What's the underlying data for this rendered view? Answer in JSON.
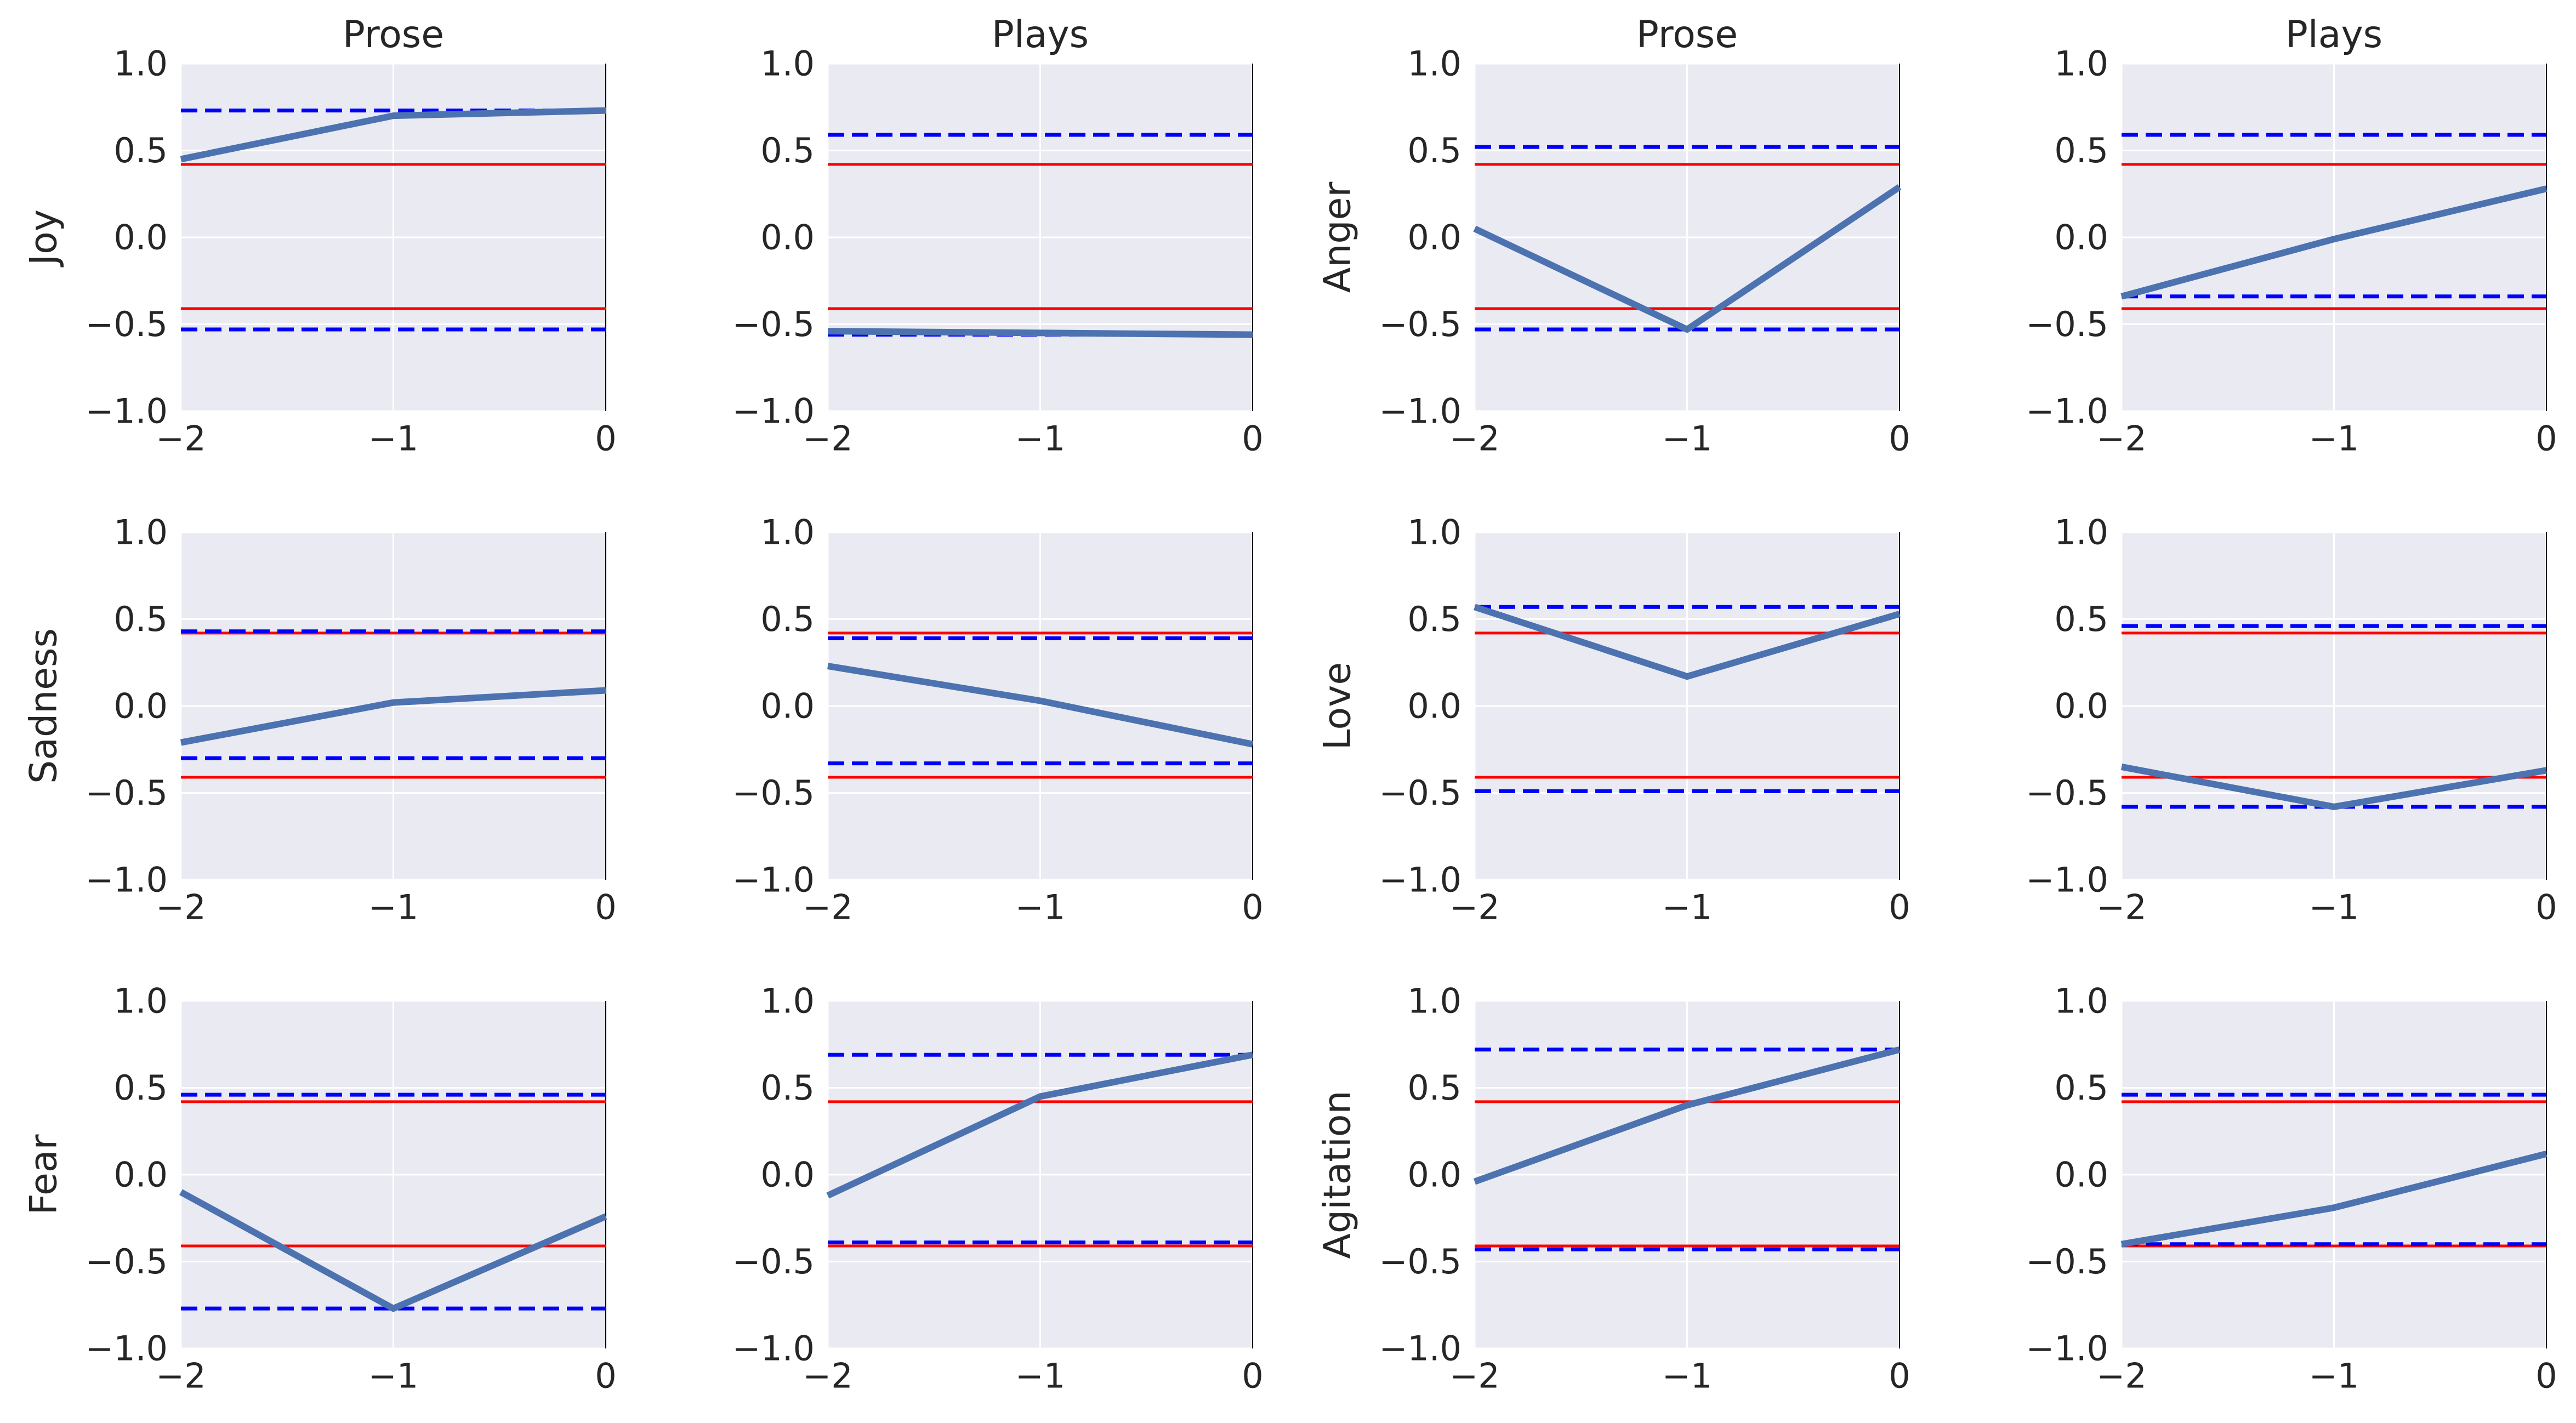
{
  "colors": {
    "panel_background": "#EAEAF2",
    "grid": "#FFFFFF",
    "series_line": "#4C72B0",
    "red_threshold": "#FF0000",
    "blue_dashed": "#0000FF",
    "right_spine": "#000000",
    "text": "#262626"
  },
  "chart_data": [
    {
      "type": "line",
      "title": "Prose",
      "ylabel": "Joy",
      "x": [
        -2,
        -1,
        0
      ],
      "xlim": [
        -2,
        0
      ],
      "ylim": [
        -1,
        1
      ],
      "xticks": [
        "−2",
        "−1",
        "0"
      ],
      "yticks": [
        "−1.0",
        "−0.5",
        "0.0",
        "0.5",
        "1.0"
      ],
      "grid": true,
      "series": [
        {
          "values": [
            0.45,
            0.7,
            0.73
          ]
        }
      ],
      "red_lines": [
        0.42,
        -0.41
      ],
      "blue_dashed_lines": [
        0.73,
        -0.53
      ]
    },
    {
      "type": "line",
      "title": "Plays",
      "ylabel": "",
      "x": [
        -2,
        -1,
        0
      ],
      "xlim": [
        -2,
        0
      ],
      "ylim": [
        -1,
        1
      ],
      "xticks": [
        "−2",
        "−1",
        "0"
      ],
      "yticks": [
        "−1.0",
        "−0.5",
        "0.0",
        "0.5",
        "1.0"
      ],
      "grid": true,
      "series": [
        {
          "values": [
            -0.54,
            -0.55,
            -0.56
          ]
        }
      ],
      "red_lines": [
        0.42,
        -0.41
      ],
      "blue_dashed_lines": [
        0.59,
        -0.56
      ]
    },
    {
      "type": "line",
      "title": "Prose",
      "ylabel": "Anger",
      "x": [
        -2,
        -1,
        0
      ],
      "xlim": [
        -2,
        0
      ],
      "ylim": [
        -1,
        1
      ],
      "xticks": [
        "−2",
        "−1",
        "0"
      ],
      "yticks": [
        "−1.0",
        "−0.5",
        "0.0",
        "0.5",
        "1.0"
      ],
      "grid": true,
      "series": [
        {
          "values": [
            0.05,
            -0.53,
            0.29
          ]
        }
      ],
      "red_lines": [
        0.42,
        -0.41
      ],
      "blue_dashed_lines": [
        0.52,
        -0.53
      ]
    },
    {
      "type": "line",
      "title": "Plays",
      "ylabel": "",
      "x": [
        -2,
        -1,
        0
      ],
      "xlim": [
        -2,
        0
      ],
      "ylim": [
        -1,
        1
      ],
      "xticks": [
        "−2",
        "−1",
        "0"
      ],
      "yticks": [
        "−1.0",
        "−0.5",
        "0.0",
        "0.5",
        "1.0"
      ],
      "grid": true,
      "series": [
        {
          "values": [
            -0.34,
            -0.01,
            0.28
          ]
        }
      ],
      "red_lines": [
        0.42,
        -0.41
      ],
      "blue_dashed_lines": [
        0.59,
        -0.34
      ]
    },
    {
      "type": "line",
      "title": "",
      "ylabel": "Sadness",
      "x": [
        -2,
        -1,
        0
      ],
      "xlim": [
        -2,
        0
      ],
      "ylim": [
        -1,
        1
      ],
      "xticks": [
        "−2",
        "−1",
        "0"
      ],
      "yticks": [
        "−1.0",
        "−0.5",
        "0.0",
        "0.5",
        "1.0"
      ],
      "grid": true,
      "series": [
        {
          "values": [
            -0.21,
            0.02,
            0.09
          ]
        }
      ],
      "red_lines": [
        0.42,
        -0.41
      ],
      "blue_dashed_lines": [
        0.43,
        -0.3
      ]
    },
    {
      "type": "line",
      "title": "",
      "ylabel": "",
      "x": [
        -2,
        -1,
        0
      ],
      "xlim": [
        -2,
        0
      ],
      "ylim": [
        -1,
        1
      ],
      "xticks": [
        "−2",
        "−1",
        "0"
      ],
      "yticks": [
        "−1.0",
        "−0.5",
        "0.0",
        "0.5",
        "1.0"
      ],
      "grid": true,
      "series": [
        {
          "values": [
            0.23,
            0.03,
            -0.22
          ]
        }
      ],
      "red_lines": [
        0.42,
        -0.41
      ],
      "blue_dashed_lines": [
        0.39,
        -0.33
      ]
    },
    {
      "type": "line",
      "title": "",
      "ylabel": "Love",
      "x": [
        -2,
        -1,
        0
      ],
      "xlim": [
        -2,
        0
      ],
      "ylim": [
        -1,
        1
      ],
      "xticks": [
        "−2",
        "−1",
        "0"
      ],
      "yticks": [
        "−1.0",
        "−0.5",
        "0.0",
        "0.5",
        "1.0"
      ],
      "grid": true,
      "series": [
        {
          "values": [
            0.57,
            0.17,
            0.53
          ]
        }
      ],
      "red_lines": [
        0.42,
        -0.41
      ],
      "blue_dashed_lines": [
        0.57,
        -0.49
      ]
    },
    {
      "type": "line",
      "title": "",
      "ylabel": "",
      "x": [
        -2,
        -1,
        0
      ],
      "xlim": [
        -2,
        0
      ],
      "ylim": [
        -1,
        1
      ],
      "xticks": [
        "−2",
        "−1",
        "0"
      ],
      "yticks": [
        "−1.0",
        "−0.5",
        "0.0",
        "0.5",
        "1.0"
      ],
      "grid": true,
      "series": [
        {
          "values": [
            -0.35,
            -0.58,
            -0.37
          ]
        }
      ],
      "red_lines": [
        0.42,
        -0.41
      ],
      "blue_dashed_lines": [
        0.46,
        -0.58
      ]
    },
    {
      "type": "line",
      "title": "",
      "ylabel": "Fear",
      "x": [
        -2,
        -1,
        0
      ],
      "xlim": [
        -2,
        0
      ],
      "ylim": [
        -1,
        1
      ],
      "xticks": [
        "−2",
        "−1",
        "0"
      ],
      "yticks": [
        "−1.0",
        "−0.5",
        "0.0",
        "0.5",
        "1.0"
      ],
      "grid": true,
      "series": [
        {
          "values": [
            -0.1,
            -0.77,
            -0.24
          ]
        }
      ],
      "red_lines": [
        0.42,
        -0.41
      ],
      "blue_dashed_lines": [
        0.46,
        -0.77
      ]
    },
    {
      "type": "line",
      "title": "",
      "ylabel": "",
      "x": [
        -2,
        -1,
        0
      ],
      "xlim": [
        -2,
        0
      ],
      "ylim": [
        -1,
        1
      ],
      "xticks": [
        "−2",
        "−1",
        "0"
      ],
      "yticks": [
        "−1.0",
        "−0.5",
        "0.0",
        "0.5",
        "1.0"
      ],
      "grid": true,
      "series": [
        {
          "values": [
            -0.12,
            0.45,
            0.69
          ]
        }
      ],
      "red_lines": [
        0.42,
        -0.41
      ],
      "blue_dashed_lines": [
        0.69,
        -0.39
      ]
    },
    {
      "type": "line",
      "title": "",
      "ylabel": "Agitation",
      "x": [
        -2,
        -1,
        0
      ],
      "xlim": [
        -2,
        0
      ],
      "ylim": [
        -1,
        1
      ],
      "xticks": [
        "−2",
        "−1",
        "0"
      ],
      "yticks": [
        "−1.0",
        "−0.5",
        "0.0",
        "0.5",
        "1.0"
      ],
      "grid": true,
      "series": [
        {
          "values": [
            -0.04,
            0.4,
            0.72
          ]
        }
      ],
      "red_lines": [
        0.42,
        -0.41
      ],
      "blue_dashed_lines": [
        0.72,
        -0.43
      ]
    },
    {
      "type": "line",
      "title": "",
      "ylabel": "",
      "x": [
        -2,
        -1,
        0
      ],
      "xlim": [
        -2,
        0
      ],
      "ylim": [
        -1,
        1
      ],
      "xticks": [
        "−2",
        "−1",
        "0"
      ],
      "yticks": [
        "−1.0",
        "−0.5",
        "0.0",
        "0.5",
        "1.0"
      ],
      "grid": true,
      "series": [
        {
          "values": [
            -0.4,
            -0.19,
            0.12
          ]
        }
      ],
      "red_lines": [
        0.42,
        -0.41
      ],
      "blue_dashed_lines": [
        0.46,
        -0.4
      ]
    }
  ]
}
